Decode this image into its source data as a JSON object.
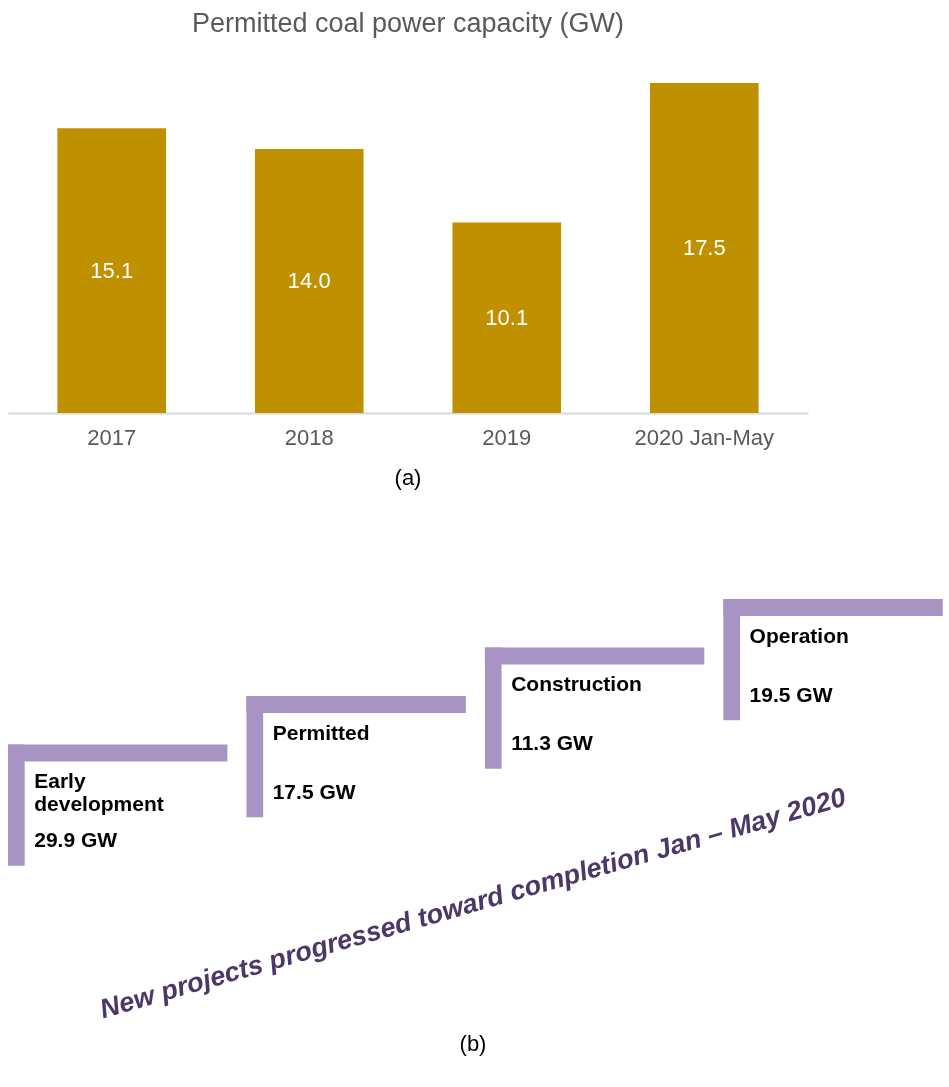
{
  "chart_data": [
    {
      "type": "bar",
      "title": "Permitted coal power capacity (GW)",
      "categories": [
        "2017",
        "2018",
        "2019",
        "2020 Jan-May"
      ],
      "values": [
        15.1,
        14.0,
        10.1,
        17.5
      ],
      "value_labels": [
        "15.1",
        "14.0",
        "10.1",
        "17.5"
      ],
      "color": "#bf9000",
      "annotations": [
        "(a)"
      ]
    },
    {
      "type": "other",
      "categories": [
        "Early development",
        "Permitted",
        "Construction",
        "Operation"
      ],
      "values": [
        29.9,
        17.5,
        11.3,
        19.5
      ],
      "value_labels": [
        "29.9 GW",
        "17.5 GW",
        "11.3 GW",
        "19.5 GW"
      ],
      "color": "#a894c4",
      "annotations": [
        "New projects progressed toward completion Jan – May 2020",
        "(b)"
      ]
    }
  ]
}
